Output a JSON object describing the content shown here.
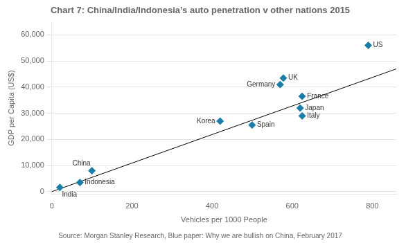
{
  "chart_data": {
    "type": "scatter",
    "title": "Chart 7: China/India/Indonesia’s auto penetration v other nations 2015",
    "xlabel": "Vehicles per 1000 People",
    "ylabel": "GDP per Capita (US$)",
    "annotations": [
      "Source: Morgan Stanley Research, Blue paper: Why we are bullish on China, February 2017"
    ],
    "point_labels": [
      "India",
      "Indonesia",
      "China",
      "Korea",
      "Spain",
      "Germany",
      "UK",
      "France",
      "Japan",
      "Italy",
      "US"
    ],
    "x": [
      20,
      70,
      100,
      420,
      500,
      570,
      578,
      625,
      620,
      625,
      790
    ],
    "values": [
      1600,
      3500,
      8000,
      27000,
      25500,
      41000,
      43500,
      36500,
      32000,
      29000,
      56000
    ],
    "color": "#1a7ea8",
    "marker": "diamond",
    "trend_line": {
      "x": [
        0,
        860
      ],
      "values": [
        0,
        47000
      ],
      "color": "#000000"
    },
    "xlim": [
      0,
      860
    ],
    "ylim": [
      -1000,
      65000
    ],
    "xticks": [
      0,
      200,
      400,
      600,
      800
    ],
    "yticks": [
      0,
      {
        "value": 10000,
        "label": "10,000"
      },
      {
        "value": 20000,
        "label": "20,000"
      },
      {
        "value": 30000,
        "label": "30,000"
      },
      {
        "value": 40000,
        "label": "40,000"
      },
      {
        "value": 50000,
        "label": "50,000"
      },
      {
        "value": 60000,
        "label": "60,000"
      }
    ],
    "grid": "y"
  }
}
